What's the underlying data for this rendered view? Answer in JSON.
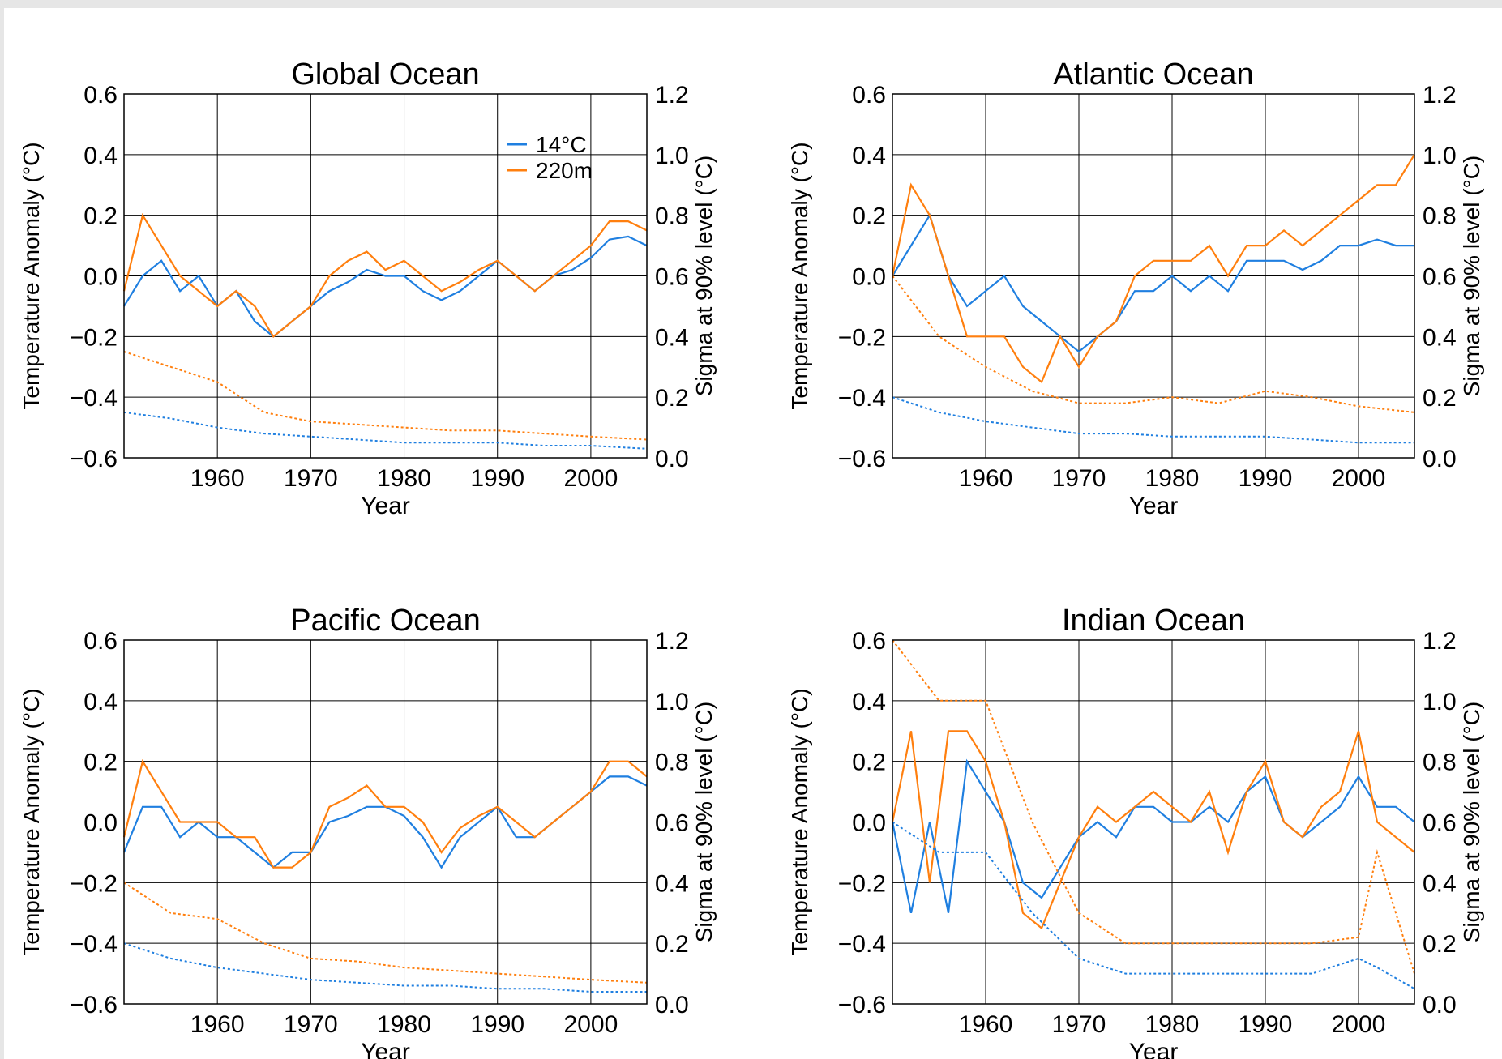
{
  "figure": {
    "legend": [
      {
        "label": "14°C",
        "color": "#1f7fe0"
      },
      {
        "label": "220m",
        "color": "#ff7f0e"
      }
    ]
  },
  "chart_data": [
    {
      "type": "line",
      "title": "Global Ocean",
      "xlabel": "Year",
      "ylabel": "Temperature Anomaly (°C)",
      "ylabel_right": "Sigma at 90% level (°C)",
      "xlim": [
        1950,
        2006
      ],
      "ylim": [
        -0.6,
        0.6
      ],
      "ylim_right": [
        0.0,
        1.2
      ],
      "xticks": [
        "1960",
        "1970",
        "1980",
        "1990",
        "2000"
      ],
      "yticks": [
        "0.6",
        "0.4",
        "0.2",
        "0.0",
        "−0.2",
        "−0.4",
        "−0.6"
      ],
      "yticks_right": [
        "1.2",
        "1.0",
        "0.8",
        "0.6",
        "0.4",
        "0.2",
        "0.0"
      ],
      "grid": true,
      "legend_position": "top-right",
      "series": [
        {
          "name": "14°C",
          "color": "#1f7fe0",
          "style": "solid",
          "axis": "left",
          "x": [
            1950,
            1952,
            1954,
            1956,
            1958,
            1960,
            1962,
            1964,
            1966,
            1968,
            1970,
            1972,
            1974,
            1976,
            1978,
            1980,
            1982,
            1984,
            1986,
            1988,
            1990,
            1992,
            1994,
            1996,
            1998,
            2000,
            2002,
            2004,
            2006
          ],
          "values": [
            -0.1,
            0.0,
            0.05,
            -0.05,
            0.0,
            -0.1,
            -0.05,
            -0.15,
            -0.2,
            -0.15,
            -0.1,
            -0.05,
            -0.02,
            0.02,
            0.0,
            0.0,
            -0.05,
            -0.08,
            -0.05,
            0.0,
            0.05,
            0.0,
            -0.05,
            0.0,
            0.02,
            0.06,
            0.12,
            0.13,
            0.1
          ]
        },
        {
          "name": "220m",
          "color": "#ff7f0e",
          "style": "solid",
          "axis": "left",
          "x": [
            1950,
            1952,
            1954,
            1956,
            1958,
            1960,
            1962,
            1964,
            1966,
            1968,
            1970,
            1972,
            1974,
            1976,
            1978,
            1980,
            1982,
            1984,
            1986,
            1988,
            1990,
            1992,
            1994,
            1996,
            1998,
            2000,
            2002,
            2004,
            2006
          ],
          "values": [
            -0.05,
            0.2,
            0.1,
            0.0,
            -0.05,
            -0.1,
            -0.05,
            -0.1,
            -0.2,
            -0.15,
            -0.1,
            0.0,
            0.05,
            0.08,
            0.02,
            0.05,
            0.0,
            -0.05,
            -0.02,
            0.02,
            0.05,
            0.0,
            -0.05,
            0.0,
            0.05,
            0.1,
            0.18,
            0.18,
            0.15
          ]
        },
        {
          "name": "14°C",
          "color": "#1f7fe0",
          "style": "dotted",
          "axis": "right",
          "x": [
            1950,
            1955,
            1960,
            1965,
            1970,
            1975,
            1980,
            1985,
            1990,
            1995,
            2000,
            2006
          ],
          "values": [
            0.15,
            0.13,
            0.1,
            0.08,
            0.07,
            0.06,
            0.05,
            0.05,
            0.05,
            0.04,
            0.04,
            0.03
          ]
        },
        {
          "name": "220m",
          "color": "#ff7f0e",
          "style": "dotted",
          "axis": "right",
          "x": [
            1950,
            1955,
            1960,
            1965,
            1970,
            1975,
            1980,
            1985,
            1990,
            1995,
            2000,
            2006
          ],
          "values": [
            0.35,
            0.3,
            0.25,
            0.15,
            0.12,
            0.11,
            0.1,
            0.09,
            0.09,
            0.08,
            0.07,
            0.06
          ]
        }
      ]
    },
    {
      "type": "line",
      "title": "Atlantic Ocean",
      "xlabel": "Year",
      "ylabel": "Temperature Anomaly (°C)",
      "ylabel_right": "Sigma at 90% level (°C)",
      "xlim": [
        1950,
        2006
      ],
      "ylim": [
        -0.6,
        0.6
      ],
      "ylim_right": [
        0.0,
        1.2
      ],
      "xticks": [
        "1960",
        "1970",
        "1980",
        "1990",
        "2000"
      ],
      "yticks": [
        "0.6",
        "0.4",
        "0.2",
        "0.0",
        "−0.2",
        "−0.4",
        "−0.6"
      ],
      "yticks_right": [
        "1.2",
        "1.0",
        "0.8",
        "0.6",
        "0.4",
        "0.2",
        "0.0"
      ],
      "grid": true,
      "series": [
        {
          "name": "14°C",
          "color": "#1f7fe0",
          "style": "solid",
          "axis": "left",
          "x": [
            1950,
            1952,
            1954,
            1956,
            1958,
            1960,
            1962,
            1964,
            1966,
            1968,
            1970,
            1972,
            1974,
            1976,
            1978,
            1980,
            1982,
            1984,
            1986,
            1988,
            1990,
            1992,
            1994,
            1996,
            1998,
            2000,
            2002,
            2004,
            2006
          ],
          "values": [
            0.0,
            0.1,
            0.2,
            0.0,
            -0.1,
            -0.05,
            0.0,
            -0.1,
            -0.15,
            -0.2,
            -0.25,
            -0.2,
            -0.15,
            -0.05,
            -0.05,
            0.0,
            -0.05,
            0.0,
            -0.05,
            0.05,
            0.05,
            0.05,
            0.02,
            0.05,
            0.1,
            0.1,
            0.12,
            0.1,
            0.1
          ]
        },
        {
          "name": "220m",
          "color": "#ff7f0e",
          "style": "solid",
          "axis": "left",
          "x": [
            1950,
            1952,
            1954,
            1956,
            1958,
            1960,
            1962,
            1964,
            1966,
            1968,
            1970,
            1972,
            1974,
            1976,
            1978,
            1980,
            1982,
            1984,
            1986,
            1988,
            1990,
            1992,
            1994,
            1996,
            1998,
            2000,
            2002,
            2004,
            2006
          ],
          "values": [
            0.0,
            0.3,
            0.2,
            0.0,
            -0.2,
            -0.2,
            -0.2,
            -0.3,
            -0.35,
            -0.2,
            -0.3,
            -0.2,
            -0.15,
            0.0,
            0.05,
            0.05,
            0.05,
            0.1,
            0.0,
            0.1,
            0.1,
            0.15,
            0.1,
            0.15,
            0.2,
            0.25,
            0.3,
            0.3,
            0.4
          ]
        },
        {
          "name": "14°C",
          "color": "#1f7fe0",
          "style": "dotted",
          "axis": "right",
          "x": [
            1950,
            1955,
            1960,
            1965,
            1970,
            1975,
            1980,
            1985,
            1990,
            1995,
            2000,
            2006
          ],
          "values": [
            0.2,
            0.15,
            0.12,
            0.1,
            0.08,
            0.08,
            0.07,
            0.07,
            0.07,
            0.06,
            0.05,
            0.05
          ]
        },
        {
          "name": "220m",
          "color": "#ff7f0e",
          "style": "dotted",
          "axis": "right",
          "x": [
            1950,
            1955,
            1960,
            1965,
            1970,
            1975,
            1980,
            1985,
            1990,
            1995,
            2000,
            2006
          ],
          "values": [
            0.6,
            0.4,
            0.3,
            0.22,
            0.18,
            0.18,
            0.2,
            0.18,
            0.22,
            0.2,
            0.17,
            0.15
          ]
        }
      ]
    },
    {
      "type": "line",
      "title": "Pacific Ocean",
      "xlabel": "Year",
      "ylabel": "Temperature Anomaly (°C)",
      "ylabel_right": "Sigma at 90% level (°C)",
      "xlim": [
        1950,
        2006
      ],
      "ylim": [
        -0.6,
        0.6
      ],
      "ylim_right": [
        0.0,
        1.2
      ],
      "xticks": [
        "1960",
        "1970",
        "1980",
        "1990",
        "2000"
      ],
      "yticks": [
        "0.6",
        "0.4",
        "0.2",
        "0.0",
        "−0.2",
        "−0.4",
        "−0.6"
      ],
      "yticks_right": [
        "1.2",
        "1.0",
        "0.8",
        "0.6",
        "0.4",
        "0.2",
        "0.0"
      ],
      "grid": true,
      "series": [
        {
          "name": "14°C",
          "color": "#1f7fe0",
          "style": "solid",
          "axis": "left",
          "x": [
            1950,
            1952,
            1954,
            1956,
            1958,
            1960,
            1962,
            1964,
            1966,
            1968,
            1970,
            1972,
            1974,
            1976,
            1978,
            1980,
            1982,
            1984,
            1986,
            1988,
            1990,
            1992,
            1994,
            1996,
            1998,
            2000,
            2002,
            2004,
            2006
          ],
          "values": [
            -0.1,
            0.05,
            0.05,
            -0.05,
            0.0,
            -0.05,
            -0.05,
            -0.1,
            -0.15,
            -0.1,
            -0.1,
            0.0,
            0.02,
            0.05,
            0.05,
            0.02,
            -0.05,
            -0.15,
            -0.05,
            0.0,
            0.05,
            -0.05,
            -0.05,
            0.0,
            0.05,
            0.1,
            0.15,
            0.15,
            0.12
          ]
        },
        {
          "name": "220m",
          "color": "#ff7f0e",
          "style": "solid",
          "axis": "left",
          "x": [
            1950,
            1952,
            1954,
            1956,
            1958,
            1960,
            1962,
            1964,
            1966,
            1968,
            1970,
            1972,
            1974,
            1976,
            1978,
            1980,
            1982,
            1984,
            1986,
            1988,
            1990,
            1992,
            1994,
            1996,
            1998,
            2000,
            2002,
            2004,
            2006
          ],
          "values": [
            -0.05,
            0.2,
            0.1,
            0.0,
            0.0,
            0.0,
            -0.05,
            -0.05,
            -0.15,
            -0.15,
            -0.1,
            0.05,
            0.08,
            0.12,
            0.05,
            0.05,
            0.0,
            -0.1,
            -0.02,
            0.02,
            0.05,
            0.0,
            -0.05,
            0.0,
            0.05,
            0.1,
            0.2,
            0.2,
            0.15
          ]
        },
        {
          "name": "14°C",
          "color": "#1f7fe0",
          "style": "dotted",
          "axis": "right",
          "x": [
            1950,
            1955,
            1960,
            1965,
            1970,
            1975,
            1980,
            1985,
            1990,
            1995,
            2000,
            2006
          ],
          "values": [
            0.2,
            0.15,
            0.12,
            0.1,
            0.08,
            0.07,
            0.06,
            0.06,
            0.05,
            0.05,
            0.04,
            0.04
          ]
        },
        {
          "name": "220m",
          "color": "#ff7f0e",
          "style": "dotted",
          "axis": "right",
          "x": [
            1950,
            1955,
            1960,
            1965,
            1970,
            1975,
            1980,
            1985,
            1990,
            1995,
            2000,
            2006
          ],
          "values": [
            0.4,
            0.3,
            0.28,
            0.2,
            0.15,
            0.14,
            0.12,
            0.11,
            0.1,
            0.09,
            0.08,
            0.07
          ]
        }
      ]
    },
    {
      "type": "line",
      "title": "Indian Ocean",
      "xlabel": "Year",
      "ylabel": "Temperature Anomaly (°C)",
      "ylabel_right": "Sigma at 90% level (°C)",
      "xlim": [
        1950,
        2006
      ],
      "ylim": [
        -0.6,
        0.6
      ],
      "ylim_right": [
        0.0,
        1.2
      ],
      "xticks": [
        "1960",
        "1970",
        "1980",
        "1990",
        "2000"
      ],
      "yticks": [
        "0.6",
        "0.4",
        "0.2",
        "0.0",
        "−0.2",
        "−0.4",
        "−0.6"
      ],
      "yticks_right": [
        "1.2",
        "1.0",
        "0.8",
        "0.6",
        "0.4",
        "0.2",
        "0.0"
      ],
      "grid": true,
      "series": [
        {
          "name": "14°C",
          "color": "#1f7fe0",
          "style": "solid",
          "axis": "left",
          "x": [
            1950,
            1952,
            1954,
            1956,
            1958,
            1960,
            1962,
            1964,
            1966,
            1968,
            1970,
            1972,
            1974,
            1976,
            1978,
            1980,
            1982,
            1984,
            1986,
            1988,
            1990,
            1992,
            1994,
            1996,
            1998,
            2000,
            2002,
            2004,
            2006
          ],
          "values": [
            0.0,
            -0.3,
            0.0,
            -0.3,
            0.2,
            0.1,
            0.0,
            -0.2,
            -0.25,
            -0.15,
            -0.05,
            0.0,
            -0.05,
            0.05,
            0.05,
            0.0,
            0.0,
            0.05,
            0.0,
            0.1,
            0.15,
            0.0,
            -0.05,
            0.0,
            0.05,
            0.15,
            0.05,
            0.05,
            0.0
          ]
        },
        {
          "name": "220m",
          "color": "#ff7f0e",
          "style": "solid",
          "axis": "left",
          "x": [
            1950,
            1952,
            1954,
            1956,
            1958,
            1960,
            1962,
            1964,
            1966,
            1968,
            1970,
            1972,
            1974,
            1976,
            1978,
            1980,
            1982,
            1984,
            1986,
            1988,
            1990,
            1992,
            1994,
            1996,
            1998,
            2000,
            2002,
            2004,
            2006
          ],
          "values": [
            0.0,
            0.3,
            -0.2,
            0.3,
            0.3,
            0.2,
            0.0,
            -0.3,
            -0.35,
            -0.2,
            -0.05,
            0.05,
            0.0,
            0.05,
            0.1,
            0.05,
            0.0,
            0.1,
            -0.1,
            0.1,
            0.2,
            0.0,
            -0.05,
            0.05,
            0.1,
            0.3,
            0.0,
            -0.05,
            -0.1
          ]
        },
        {
          "name": "14°C",
          "color": "#1f7fe0",
          "style": "dotted",
          "axis": "right",
          "x": [
            1950,
            1955,
            1960,
            1965,
            1970,
            1975,
            1980,
            1985,
            1990,
            1995,
            2000,
            2002,
            2006
          ],
          "values": [
            0.6,
            0.5,
            0.5,
            0.3,
            0.15,
            0.1,
            0.1,
            0.1,
            0.1,
            0.1,
            0.15,
            0.12,
            0.05
          ]
        },
        {
          "name": "220m",
          "color": "#ff7f0e",
          "style": "dotted",
          "axis": "right",
          "x": [
            1950,
            1955,
            1960,
            1965,
            1970,
            1975,
            1980,
            1985,
            1990,
            1995,
            2000,
            2002,
            2006
          ],
          "values": [
            1.2,
            1.0,
            1.0,
            0.6,
            0.3,
            0.2,
            0.2,
            0.2,
            0.2,
            0.2,
            0.22,
            0.5,
            0.1
          ]
        }
      ]
    }
  ]
}
